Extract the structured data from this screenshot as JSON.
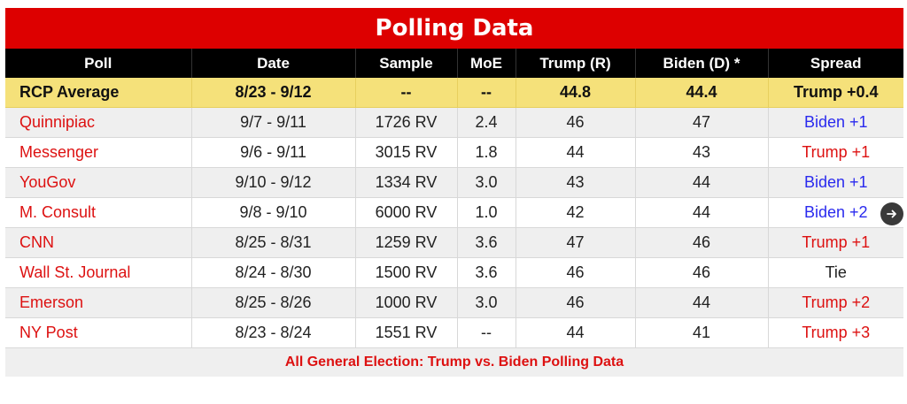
{
  "title": "Polling Data",
  "headers": [
    "Poll",
    "Date",
    "Sample",
    "MoE",
    "Trump (R)",
    "Biden (D) *",
    "Spread"
  ],
  "average": {
    "poll": "RCP Average",
    "date": "8/23 - 9/12",
    "sample": "--",
    "moe": "--",
    "trump": "44.8",
    "biden": "44.4",
    "spread": "Trump +0.4"
  },
  "rows": [
    {
      "poll": "Quinnipiac",
      "date": "9/7 - 9/11",
      "sample": "1726 RV",
      "moe": "2.4",
      "trump": "46",
      "biden": "47",
      "spread": "Biden +1"
    },
    {
      "poll": "Messenger",
      "date": "9/6 - 9/11",
      "sample": "3015 RV",
      "moe": "1.8",
      "trump": "44",
      "biden": "43",
      "spread": "Trump +1"
    },
    {
      "poll": "YouGov",
      "date": "9/10 - 9/12",
      "sample": "1334 RV",
      "moe": "3.0",
      "trump": "43",
      "biden": "44",
      "spread": "Biden +1"
    },
    {
      "poll": "M. Consult",
      "date": "9/8 - 9/10",
      "sample": "6000 RV",
      "moe": "1.0",
      "trump": "42",
      "biden": "44",
      "spread": "Biden +2"
    },
    {
      "poll": "CNN",
      "date": "8/25 - 8/31",
      "sample": "1259 RV",
      "moe": "3.6",
      "trump": "47",
      "biden": "46",
      "spread": "Trump +1"
    },
    {
      "poll": "Wall St. Journal",
      "date": "8/24 - 8/30",
      "sample": "1500 RV",
      "moe": "3.6",
      "trump": "46",
      "biden": "46",
      "spread": "Tie"
    },
    {
      "poll": "Emerson",
      "date": "8/25 - 8/26",
      "sample": "1000 RV",
      "moe": "3.0",
      "trump": "46",
      "biden": "44",
      "spread": "Trump +2"
    },
    {
      "poll": "NY Post",
      "date": "8/23 - 8/24",
      "sample": "1551 RV",
      "moe": "--",
      "trump": "44",
      "biden": "41",
      "spread": "Trump +3"
    }
  ],
  "footer_link": "All General Election: Trump vs. Biden Polling Data",
  "next_icon": "arrow-right-icon",
  "colors": {
    "title_bg": "#dd0000",
    "header_bg": "#000000",
    "average_bg": "#f5e17a",
    "trump_red": "#dd1111",
    "biden_blue": "#2a2aee",
    "alt_row_bg": "#efefef"
  }
}
